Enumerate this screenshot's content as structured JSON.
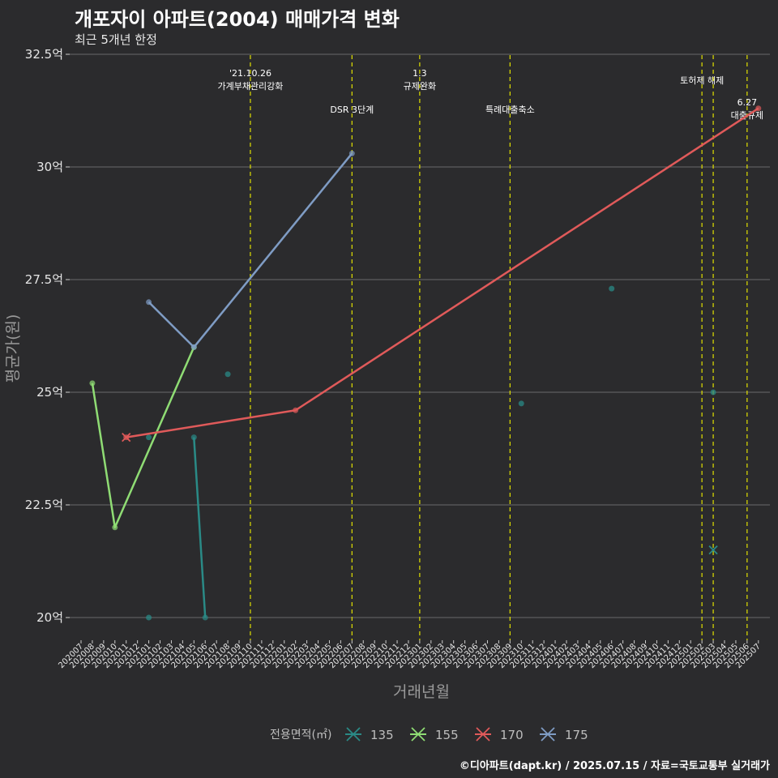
{
  "header": {
    "title": "개포자이 아파트(2004) 매매가격 변화",
    "subtitle": "최근 5개년 한정"
  },
  "footer": {
    "caption": "©디아파트(dapt.kr) / 2025.07.15 / 자료=국토교통부 실거래가"
  },
  "chart_data": {
    "type": "line",
    "xlabel": "거래년월",
    "ylabel": "평균가(원)",
    "ylim": [
      19.5,
      32.5
    ],
    "y_ticks": [
      20,
      22.5,
      25,
      27.5,
      30,
      32.5
    ],
    "y_tick_labels": [
      "20억",
      "22.5억",
      "25억",
      "27.5억",
      "30억",
      "32.5억"
    ],
    "x_categories": [
      "202007",
      "202008",
      "202009",
      "202010",
      "202011",
      "202012",
      "202101",
      "202102",
      "202103",
      "202104",
      "202105",
      "202106",
      "202107",
      "202108",
      "202109",
      "202110",
      "202111",
      "202112",
      "202201",
      "202202",
      "202203",
      "202204",
      "202205",
      "202206",
      "202207",
      "202208",
      "202209",
      "202210",
      "202211",
      "202212",
      "202301",
      "202302",
      "202303",
      "202304",
      "202305",
      "202306",
      "202307",
      "202308",
      "202309",
      "202310",
      "202311",
      "202312",
      "202401",
      "202402",
      "202403",
      "202404",
      "202405",
      "202406",
      "202407",
      "202408",
      "202409",
      "202410",
      "202411",
      "202412",
      "202501",
      "202502",
      "202503",
      "202504",
      "202505",
      "202506",
      "202507"
    ],
    "grid": true,
    "legend": {
      "title": "전용면적(㎡)",
      "position": "bottom"
    },
    "series": [
      {
        "name": "135",
        "color": "#2a8a86",
        "line": [
          {
            "x": "202105",
            "y": 24.0
          },
          {
            "x": "202106",
            "y": 20.0
          }
        ],
        "points": [
          {
            "x": "202101",
            "y": 20.0
          },
          {
            "x": "202101",
            "y": 24.0
          },
          {
            "x": "202108",
            "y": 25.4
          },
          {
            "x": "202310",
            "y": 24.75
          },
          {
            "x": "202406",
            "y": 27.3
          },
          {
            "x": "202503",
            "y": 25.0
          }
        ],
        "crosses": [
          {
            "x": "202503",
            "y": 21.5
          }
        ]
      },
      {
        "name": "155",
        "color": "#8fdc74",
        "line": [
          {
            "x": "202008",
            "y": 25.2
          },
          {
            "x": "202010",
            "y": 22.0
          },
          {
            "x": "202105",
            "y": 26.0
          }
        ],
        "points": [],
        "crosses": []
      },
      {
        "name": "170",
        "color": "#e05a5a",
        "line": [
          {
            "x": "202011",
            "y": 24.0
          },
          {
            "x": "202202",
            "y": 24.6
          },
          {
            "x": "202507",
            "y": 31.3
          }
        ],
        "points": [],
        "crosses": [
          {
            "x": "202011",
            "y": 24.0
          }
        ]
      },
      {
        "name": "175",
        "color": "#7f9cc4",
        "line": [
          {
            "x": "202101",
            "y": 27.0
          },
          {
            "x": "202105",
            "y": 26.0
          },
          {
            "x": "202207",
            "y": 30.3
          }
        ],
        "points": [],
        "crosses": []
      }
    ],
    "events": [
      {
        "x": "202110",
        "lines": [
          "'21.10.26",
          "가계부채관리강화"
        ],
        "level": 1
      },
      {
        "x": "202207",
        "lines": [
          "DSR 3단계"
        ],
        "level": 2
      },
      {
        "x": "202301",
        "lines": [
          "1.3",
          "규제완화"
        ],
        "level": 1
      },
      {
        "x": "202309",
        "lines": [
          "특례대출축소"
        ],
        "level": 2
      },
      {
        "x": "202502",
        "lines": [
          "토허제 해제"
        ],
        "level": 0,
        "shift": 1
      },
      {
        "x": "202503",
        "lines": [],
        "level": 0
      },
      {
        "x": "202506",
        "lines": [
          "6.27",
          "대출규제"
        ],
        "level": 3
      }
    ]
  }
}
